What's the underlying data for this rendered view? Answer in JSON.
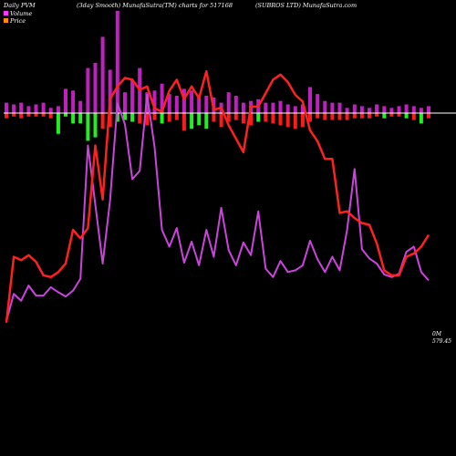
{
  "header": {
    "left": "Daily PVM",
    "center": "(3day Smooth) MunafaSutra(TM) charts for 517168",
    "right": "(SUBROS LTD) MunafaSutra.com"
  },
  "legend": [
    {
      "label": "Volume",
      "color": "#ff33ff"
    },
    {
      "label": "Price",
      "color": "#ff8c00"
    }
  ],
  "right_labels": {
    "volume": "0M",
    "price": "579.45"
  },
  "colors": {
    "background": "#000000",
    "price_line": "#ff2020",
    "volume_line": "#cc44dd",
    "vol_bar": "#c020c0",
    "bar_down": "#ff1a1a",
    "bar_up": "#22ee22",
    "baseline": "#ffffff"
  },
  "chart_data": {
    "type": "line",
    "x": [
      1,
      2,
      3,
      4,
      5,
      6,
      7,
      8,
      9,
      10,
      11,
      12,
      13,
      14,
      15,
      16,
      17,
      18,
      19,
      20,
      21,
      22,
      23,
      24,
      25,
      26,
      27,
      28,
      29,
      30,
      31,
      32,
      33,
      34,
      35,
      36,
      37,
      38,
      39,
      40,
      41,
      42,
      43,
      44,
      45,
      46,
      47,
      48,
      49,
      50,
      51,
      52,
      53,
      54,
      55,
      56,
      57,
      58
    ],
    "series": [
      {
        "name": "Price",
        "key": "price",
        "values": [
          50,
          128,
          124,
          130,
          122,
          106,
          104,
          110,
          120,
          160,
          150,
          162,
          260,
          196,
          315,
          330,
          340,
          338,
          326,
          330,
          304,
          300,
          325,
          338,
          315,
          330,
          316,
          348,
          302,
          305,
          284,
          268,
          252,
          306,
          306,
          322,
          338,
          344,
          335,
          320,
          312,
          278,
          265,
          244,
          244,
          180,
          182,
          174,
          168,
          166,
          144,
          112,
          106,
          106,
          128,
          132,
          140,
          154
        ]
      },
      {
        "name": "Volume",
        "key": "volume",
        "values": [
          52,
          84,
          76,
          94,
          82,
          82,
          92,
          86,
          81,
          88,
          102,
          260,
          190,
          120,
          195,
          310,
          285,
          220,
          230,
          320,
          258,
          160,
          140,
          162,
          121,
          146,
          118,
          160,
          128,
          186,
          136,
          118,
          145,
          130,
          182,
          114,
          104,
          123,
          110,
          112,
          118,
          147,
          125,
          110,
          128,
          112,
          160,
          232,
          137,
          126,
          120,
          107,
          104,
          108,
          134,
          140,
          110,
          100
        ]
      },
      {
        "name": "",
        "key": "bars_top",
        "values": [
          12,
          10,
          12,
          8,
          10,
          12,
          6,
          8,
          28,
          26,
          14,
          52,
          58,
          88,
          50,
          118,
          24,
          38,
          52,
          24,
          26,
          34,
          22,
          20,
          28,
          26,
          20,
          20,
          18,
          12,
          24,
          20,
          12,
          14,
          16,
          12,
          12,
          14,
          10,
          8,
          10,
          30,
          22,
          14,
          12,
          12,
          6,
          10,
          8,
          6,
          10,
          8,
          6,
          8,
          10,
          8,
          6,
          8
        ]
      },
      {
        "name": "",
        "key": "bars_bottom",
        "values": [
          6,
          4,
          6,
          4,
          4,
          4,
          6,
          24,
          4,
          12,
          12,
          32,
          28,
          18,
          16,
          10,
          8,
          10,
          12,
          14,
          8,
          12,
          10,
          8,
          20,
          18,
          14,
          18,
          10,
          16,
          10,
          8,
          12,
          14,
          10,
          10,
          12,
          14,
          16,
          18,
          16,
          10,
          6,
          8,
          8,
          8,
          8,
          6,
          6,
          6,
          4,
          6,
          4,
          4,
          6,
          8,
          12,
          6
        ]
      },
      {
        "name": "",
        "key": "bars_bottom_color",
        "values": [
          "red",
          "red",
          "red",
          "red",
          "red",
          "red",
          "red",
          "green",
          "green",
          "green",
          "green",
          "green",
          "green",
          "red",
          "red",
          "green",
          "green",
          "green",
          "red",
          "red",
          "red",
          "green",
          "red",
          "red",
          "red",
          "green",
          "green",
          "green",
          "red",
          "red",
          "red",
          "red",
          "red",
          "red",
          "green",
          "red",
          "red",
          "red",
          "red",
          "red",
          "red",
          "red",
          "red",
          "red",
          "red",
          "red",
          "red",
          "red",
          "red",
          "red",
          "red",
          "green",
          "red",
          "red",
          "green",
          "red",
          "green",
          "red"
        ]
      }
    ]
  }
}
